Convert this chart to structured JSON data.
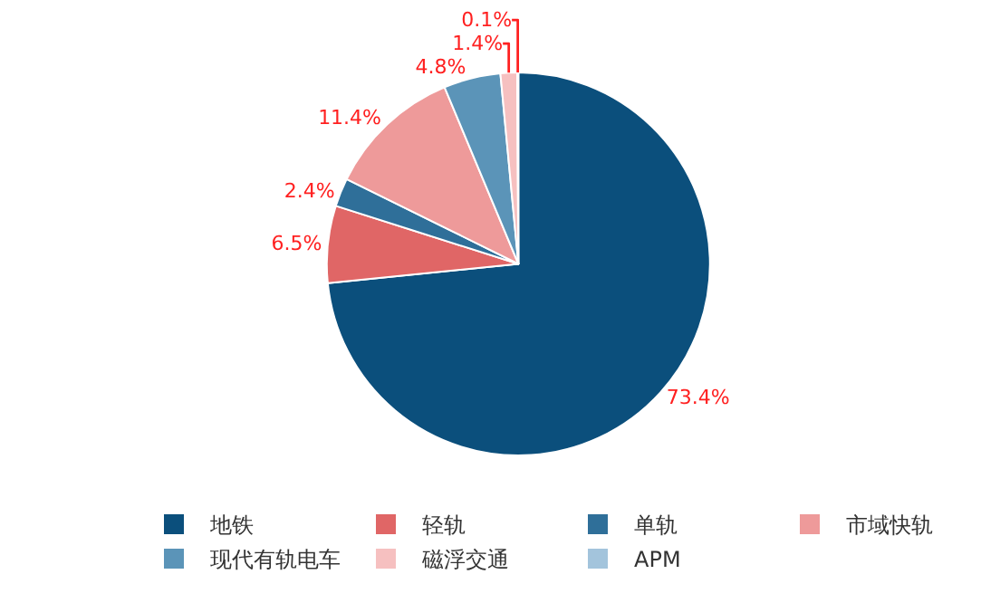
{
  "chart_data": {
    "type": "pie",
    "categories": [
      "地铁",
      "轻轨",
      "单轨",
      "市域快轨",
      "现代有轨电车",
      "磁浮交通",
      "APM"
    ],
    "values": [
      73.4,
      6.5,
      2.4,
      11.4,
      4.8,
      1.4,
      0.1
    ],
    "value_labels": [
      "73.4%",
      "6.5%",
      "2.4%",
      "11.4%",
      "4.8%",
      "1.4%",
      "0.1%"
    ],
    "colors": [
      "#0b4f7c",
      "#e06666",
      "#2f6f99",
      "#ee9a9a",
      "#5b94b8",
      "#f6c0c0",
      "#a3c4dc"
    ],
    "legend": "bottom"
  }
}
